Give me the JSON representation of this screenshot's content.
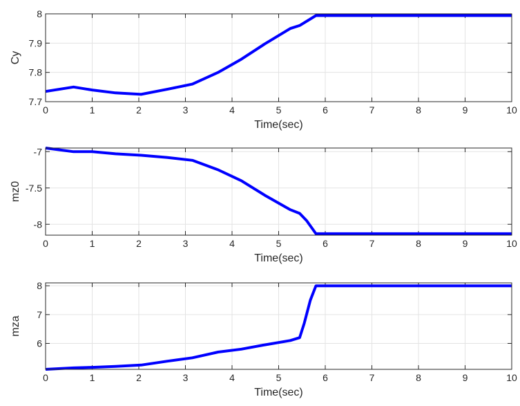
{
  "chart_data": [
    {
      "type": "line",
      "xlabel": "Time(sec)",
      "ylabel": "Cy",
      "xlim": [
        0,
        10
      ],
      "ylim": [
        7.7,
        8.0
      ],
      "xticks": [
        0,
        1,
        2,
        3,
        4,
        5,
        6,
        7,
        8,
        9,
        10
      ],
      "xtick_labels": [
        "0",
        "1",
        "2",
        "3",
        "4",
        "5",
        "6",
        "7",
        "8",
        "9",
        "10"
      ],
      "yticks": [
        7.7,
        7.8,
        7.9,
        8.0
      ],
      "ytick_labels": [
        "7.7",
        "7.8",
        "7.9",
        "8"
      ],
      "grid": true,
      "series": [
        {
          "color": "#0000ff",
          "x": [
            0,
            0.6,
            1.0,
            1.5,
            2.05,
            2.6,
            3.15,
            3.7,
            4.2,
            4.7,
            5.25,
            5.45,
            5.8,
            10
          ],
          "y": [
            7.735,
            7.75,
            7.74,
            7.73,
            7.725,
            7.742,
            7.76,
            7.8,
            7.845,
            7.897,
            7.95,
            7.96,
            7.994,
            7.994
          ]
        }
      ]
    },
    {
      "type": "line",
      "xlabel": "Time(sec)",
      "ylabel": "mz0",
      "xlim": [
        0,
        10
      ],
      "ylim": [
        -8.15,
        -6.95
      ],
      "xticks": [
        0,
        1,
        2,
        3,
        4,
        5,
        6,
        7,
        8,
        9,
        10
      ],
      "xtick_labels": [
        "0",
        "1",
        "2",
        "3",
        "4",
        "5",
        "6",
        "7",
        "8",
        "9",
        "10"
      ],
      "yticks": [
        -8,
        -7.5,
        -7
      ],
      "ytick_labels": [
        "-8",
        "-7.5",
        "-7"
      ],
      "grid": true,
      "series": [
        {
          "color": "#0000ff",
          "x": [
            0,
            0.6,
            1.0,
            1.5,
            2.05,
            2.6,
            3.15,
            3.7,
            4.2,
            4.7,
            5.25,
            5.45,
            5.6,
            5.8,
            10
          ],
          "y": [
            -6.95,
            -7.0,
            -7.0,
            -7.03,
            -7.05,
            -7.08,
            -7.12,
            -7.25,
            -7.4,
            -7.6,
            -7.8,
            -7.85,
            -7.95,
            -8.13,
            -8.13
          ]
        }
      ]
    },
    {
      "type": "line",
      "xlabel": "Time(sec)",
      "ylabel": "mza",
      "xlim": [
        0,
        10
      ],
      "ylim": [
        5.1,
        8.1
      ],
      "xticks": [
        0,
        1,
        2,
        3,
        4,
        5,
        6,
        7,
        8,
        9,
        10
      ],
      "xtick_labels": [
        "0",
        "1",
        "2",
        "3",
        "4",
        "5",
        "6",
        "7",
        "8",
        "9",
        "10"
      ],
      "yticks": [
        6,
        7,
        8
      ],
      "ytick_labels": [
        "6",
        "7",
        "8"
      ],
      "grid": true,
      "series": [
        {
          "color": "#0000ff",
          "x": [
            0,
            0.6,
            1.0,
            1.5,
            2.05,
            2.6,
            3.15,
            3.7,
            4.2,
            4.7,
            5.25,
            5.45,
            5.55,
            5.68,
            5.8,
            10
          ],
          "y": [
            5.1,
            5.15,
            5.17,
            5.2,
            5.25,
            5.38,
            5.5,
            5.7,
            5.8,
            5.95,
            6.1,
            6.2,
            6.7,
            7.5,
            8.0,
            8.0
          ]
        }
      ]
    }
  ]
}
